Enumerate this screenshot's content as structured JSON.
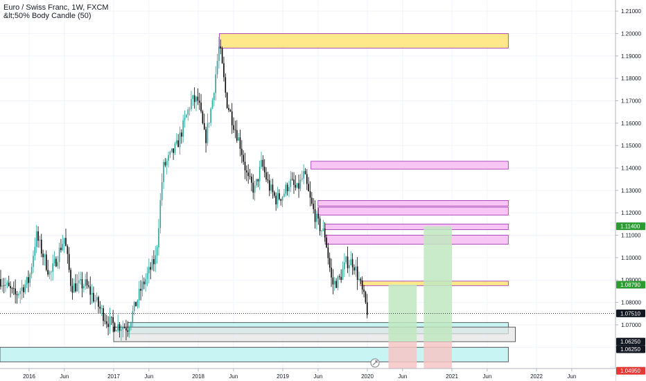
{
  "header": {
    "title": "Euro / Swiss Franc, 1W, FXCM",
    "indicator": "&lt;50% Body Candle (50)"
  },
  "colors": {
    "up": "#26a69a",
    "down": "#000000",
    "supply_fill": "#ffe88a",
    "supply_stroke": "#9c27b0",
    "pink_fill": "#f7c6f5",
    "cyan_fill": "#c8f4f4",
    "grey_fill": "#e4e4e4",
    "green_fill": "#bfe8c0",
    "red_fill": "#f6c6c6",
    "tag_green": "#2e9b32",
    "tag_red": "#e53935",
    "tag_black": "#131722"
  },
  "chart_data": {
    "type": "candlestick",
    "symbol": "EURCHF",
    "timeframe": "1W",
    "x_ticks": [
      "2016",
      "Jun",
      "2017",
      "Jun",
      "2018",
      "Jun",
      "2019",
      "Jun",
      "2020",
      "Jun",
      "2021",
      "Jun",
      "2022",
      "Jun"
    ],
    "x_tick_dates": [
      "2016-01",
      "2016-06",
      "2017-01",
      "2017-06",
      "2018-01",
      "2018-06",
      "2019-01",
      "2019-06",
      "2020-01",
      "2020-06",
      "2021-01",
      "2021-06",
      "2022-01",
      "2022-06"
    ],
    "y_ticks": [
      "1.06000",
      "1.07000",
      "1.08000",
      "1.09000",
      "1.10000",
      "1.11000",
      "1.12000",
      "1.13000",
      "1.14000",
      "1.15000",
      "1.16000",
      "1.17000",
      "1.18000",
      "1.19000",
      "1.20000",
      "1.21000"
    ],
    "ylim": [
      1.0505,
      1.2125
    ],
    "price_path": [
      [
        "2015-07",
        1.096
      ],
      [
        "2015-09",
        1.09
      ],
      [
        "2015-11",
        1.083
      ],
      [
        "2016-01",
        1.09
      ],
      [
        "2016-02",
        1.11
      ],
      [
        "2016-04",
        1.092
      ],
      [
        "2016-06",
        1.109
      ],
      [
        "2016-07",
        1.087
      ],
      [
        "2016-09",
        1.088
      ],
      [
        "2016-10",
        1.083
      ],
      [
        "2016-12",
        1.072
      ],
      [
        "2017-01",
        1.07
      ],
      [
        "2017-03",
        1.069
      ],
      [
        "2017-05",
        1.087
      ],
      [
        "2017-07",
        1.1
      ],
      [
        "2017-08",
        1.14
      ],
      [
        "2017-10",
        1.15
      ],
      [
        "2017-12",
        1.17
      ],
      [
        "2018-01",
        1.17
      ],
      [
        "2018-02",
        1.152
      ],
      [
        "2018-03",
        1.17
      ],
      [
        "2018-04",
        1.195
      ],
      [
        "2018-05",
        1.17
      ],
      [
        "2018-06",
        1.16
      ],
      [
        "2018-07",
        1.15
      ],
      [
        "2018-08",
        1.135
      ],
      [
        "2018-09",
        1.13
      ],
      [
        "2018-10",
        1.142
      ],
      [
        "2018-11",
        1.132
      ],
      [
        "2018-12",
        1.126
      ],
      [
        "2019-01",
        1.128
      ],
      [
        "2019-02",
        1.134
      ],
      [
        "2019-03",
        1.13
      ],
      [
        "2019-04",
        1.137
      ],
      [
        "2019-05",
        1.124
      ],
      [
        "2019-06",
        1.115
      ],
      [
        "2019-07",
        1.11
      ],
      [
        "2019-08",
        1.088
      ],
      [
        "2019-09",
        1.09
      ],
      [
        "2019-10",
        1.098
      ],
      [
        "2019-11",
        1.098
      ],
      [
        "2019-12",
        1.088
      ],
      [
        "2020-01",
        1.076
      ]
    ],
    "zones": [
      {
        "kind": "supply",
        "y1": 1.2,
        "y2": 1.1935,
        "x1": "2018-04",
        "x2": "2021-09"
      },
      {
        "kind": "pink",
        "y1": 1.143,
        "y2": 1.1395,
        "x1": "2019-05",
        "x2": "2021-09"
      },
      {
        "kind": "pink",
        "y1": 1.1255,
        "y2": 1.123,
        "x1": "2019-06",
        "x2": "2021-09"
      },
      {
        "kind": "pink",
        "y1": 1.1225,
        "y2": 1.119,
        "x1": "2019-06",
        "x2": "2021-09"
      },
      {
        "kind": "pink",
        "y1": 1.115,
        "y2": 1.1125,
        "x1": "2019-07",
        "x2": "2021-09"
      },
      {
        "kind": "pink",
        "y1": 1.11,
        "y2": 1.106,
        "x1": "2019-07",
        "x2": "2021-09"
      },
      {
        "kind": "supply",
        "y1": 1.0895,
        "y2": 1.0875,
        "x1": "2019-12",
        "x2": "2021-09"
      },
      {
        "kind": "cyan",
        "y1": 1.071,
        "y2": 1.066,
        "x1": "2017-03",
        "x2": "2021-09"
      },
      {
        "kind": "grey",
        "y1": 1.069,
        "y2": 1.0625,
        "x1": "2017-01",
        "x2": "2021-10"
      },
      {
        "kind": "cyan",
        "y1": 1.06,
        "y2": 1.0535,
        "x1": "2015-07",
        "x2": "2021-09"
      }
    ],
    "positions": [
      {
        "target": 1.088,
        "entry": 1.0625,
        "stop": 1.0495,
        "x1": "2020-04",
        "x2": "2020-08"
      },
      {
        "target": 1.114,
        "entry": 1.0625,
        "stop": 1.0495,
        "x1": "2020-09",
        "x2": "2021-01"
      }
    ],
    "price_tags": [
      {
        "label": "1.11400",
        "value": 1.114,
        "style": "green"
      },
      {
        "label": "1.08790",
        "value": 1.0879,
        "style": "green"
      },
      {
        "label": "1.07510",
        "value": 1.0751,
        "style": "black"
      },
      {
        "label": "1.06250",
        "value": 1.0625,
        "style": "black"
      },
      {
        "label": "1.06250",
        "value": 1.0625,
        "style": "black"
      },
      {
        "label": "1.04950",
        "value": 1.0495,
        "style": "red"
      }
    ],
    "current_price": 1.0751
  }
}
